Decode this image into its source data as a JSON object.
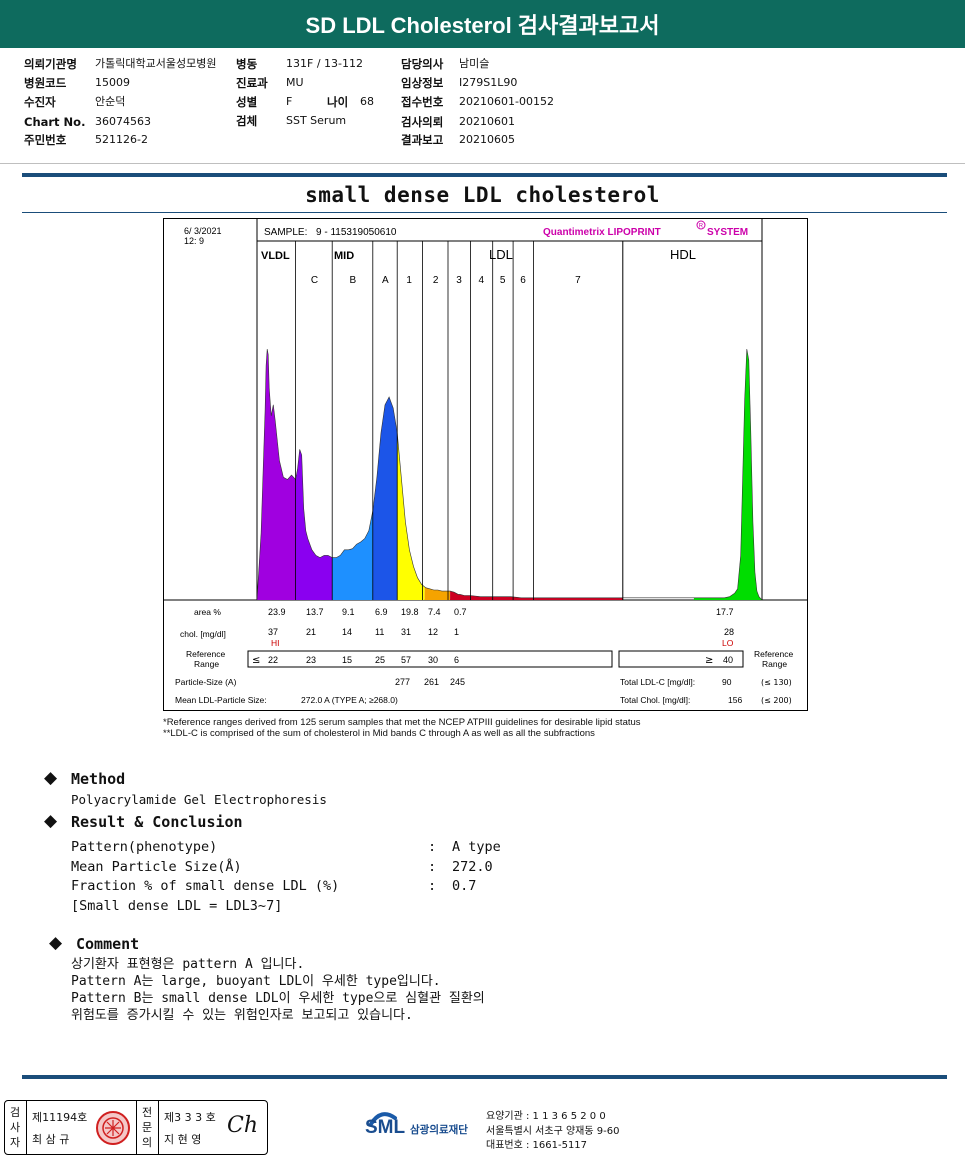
{
  "report_title": "SD LDL Cholesterol 검사결과보고서",
  "patient": {
    "col1": [
      {
        "label": "의뢰기관명",
        "value": "가톨릭대학교서울성모병원"
      },
      {
        "label": "병원코드",
        "value": "15009"
      },
      {
        "label": "수진자",
        "value": "안순덕"
      },
      {
        "label": "Chart No.",
        "value": "36074563"
      },
      {
        "label": "주민번호",
        "value": "521126-2"
      }
    ],
    "col2": [
      {
        "label": "병동",
        "value": "131F / 13-112"
      },
      {
        "label": "진료과",
        "value": "MU"
      },
      {
        "label": "성별",
        "value": "F"
      },
      {
        "label": "검체",
        "value": "SST Serum"
      }
    ],
    "age_label": "나이",
    "age_value": "68",
    "col3": [
      {
        "label": "담당의사",
        "value": "남미슬"
      },
      {
        "label": "임상정보",
        "value": "I279S1L90"
      },
      {
        "label": "접수번호",
        "value": "20210601-00152"
      },
      {
        "label": "검사의뢰",
        "value": "20210601"
      },
      {
        "label": "결과보고",
        "value": "20210605"
      }
    ]
  },
  "section_title": "small dense LDL cholesterol",
  "chart_data": {
    "type": "area",
    "date": "6/  3/2021",
    "time": "12:  9",
    "sample_label": "SAMPLE:",
    "sample_id": "9 - 115319050610",
    "brand": "Quantimetrix LIPOPRINT",
    "brand_mark": "R",
    "brand_suffix": "SYSTEM",
    "group_labels": [
      "VLDL",
      "MID",
      "LDL",
      "HDL"
    ],
    "bands": [
      "C",
      "B",
      "A",
      "1",
      "2",
      "3",
      "4",
      "5",
      "6",
      "7"
    ],
    "row_labels": {
      "area": "area %",
      "chol": "chol. [mg/dl]",
      "ref": "Reference Range",
      "ref_right": "Reference Range",
      "particle": "Particle-Size (A)",
      "mean": "Mean LDL-Particle Size:"
    },
    "area_pct": [
      "23.9",
      "13.7",
      "9.1",
      "6.9",
      "19.8",
      "7.4",
      "0.7"
    ],
    "hdl_area": "17.7",
    "chol_mgdl": [
      "37",
      "21",
      "14",
      "11",
      "31",
      "12",
      "1"
    ],
    "hdl_chol": "28",
    "hi_flag": "HI",
    "lo_flag": "LO",
    "ref_le": "≤",
    "ref_ranges": [
      "22",
      "23",
      "15",
      "25",
      "57",
      "30",
      "6"
    ],
    "hdl_ref_ge": "≥",
    "hdl_ref": "40",
    "particle_sizes": [
      "277",
      "261",
      "245"
    ],
    "mean_particle": "272.0 A   (TYPE A; ≥268.0)",
    "total_ldl_label": "Total LDL-C [mg/dl]:",
    "total_ldl": "90",
    "total_ldl_ref": "(≤ 130)",
    "total_chol_label": "Total Chol. [mg/dl]:",
    "total_chol": "156",
    "total_chol_ref": "(≤ 200)",
    "profile": {
      "x": [
        0,
        4,
        8,
        9,
        10,
        11,
        12,
        14,
        16,
        18,
        22,
        26,
        30,
        34,
        38,
        40,
        42,
        44,
        46,
        48,
        50,
        54,
        58,
        62,
        66,
        70,
        74,
        78,
        82,
        86,
        90,
        94,
        98,
        102,
        106,
        110,
        114,
        118,
        122,
        126,
        130,
        134,
        138,
        142,
        146,
        150,
        154,
        158,
        162,
        166,
        170,
        174,
        178,
        182,
        186,
        190,
        194,
        196,
        198,
        200,
        204,
        210,
        220,
        230,
        240,
        250,
        260,
        270,
        280,
        290,
        300,
        310,
        320,
        330,
        340,
        350,
        360,
        370,
        380,
        390,
        400,
        410,
        420,
        430,
        440,
        450,
        455,
        460,
        465,
        470,
        473,
        476,
        478,
        480,
        482,
        484,
        486,
        488,
        490,
        492,
        494,
        496,
        497
      ],
      "y": [
        0,
        60,
        170,
        210,
        225,
        220,
        190,
        165,
        175,
        160,
        125,
        110,
        108,
        112,
        108,
        118,
        135,
        130,
        82,
        62,
        55,
        45,
        40,
        38,
        40,
        40,
        38,
        38,
        40,
        45,
        45,
        46,
        50,
        52,
        55,
        62,
        80,
        110,
        150,
        175,
        182,
        172,
        150,
        110,
        70,
        45,
        30,
        20,
        14,
        11,
        10,
        9,
        9,
        8,
        8,
        8,
        7,
        6,
        5,
        5,
        4,
        4,
        3,
        3,
        3,
        3,
        2,
        2,
        2,
        2,
        2,
        2,
        2,
        2,
        2,
        2,
        2,
        2,
        2,
        2,
        2,
        2,
        2,
        2,
        2,
        2,
        2,
        2,
        3,
        6,
        10,
        40,
        110,
        180,
        225,
        215,
        150,
        70,
        25,
        8,
        3,
        1,
        0
      ]
    },
    "band_colors": [
      "#a000e0",
      "#8a00f0",
      "#1e90ff",
      "#1c55e8",
      "#ffff00",
      "#f5a300",
      "#cc0022",
      "#00dd00"
    ]
  },
  "footnotes": [
    "*Reference ranges derived from 125 serum samples that met the NCEP ATPIII guidelines for desirable lipid status",
    "**LDL-C is comprised of the sum of cholesterol in Mid bands C through A as well as all the subfractions"
  ],
  "method": {
    "heading": "Method",
    "text": "Polyacrylamide Gel Electrophoresis"
  },
  "result": {
    "heading": "Result & Conclusion",
    "rows": [
      {
        "label": "Pattern(phenotype)",
        "value": "A type"
      },
      {
        "label": "Mean Particle Size(Å)",
        "value": "272.0"
      },
      {
        "label": "Fraction % of small dense LDL (%)",
        "value": "0.7"
      }
    ],
    "note": "[Small dense LDL = LDL3~7]",
    "colon": ":"
  },
  "comment": {
    "heading": "Comment",
    "lines": [
      "상기환자 표현형은 pattern A 입니다.",
      "Pattern A는 large, buoyant LDL이 우세한 type입니다.",
      "Pattern B는 small dense LDL이 우세한 type으로 심혈관 질환의",
      "위험도를 증가시킬 수 있는 위험인자로 보고되고 있습니다."
    ]
  },
  "footer": {
    "sign_label_1": "검사자",
    "license_1": "제11194호",
    "name_1": "최 삼 규",
    "sign_label_2": "전문의",
    "license_2": "제3 3 3 호",
    "name_2": "지 현 영",
    "signature": "Ch",
    "logo_text": "SML",
    "foundation": "삼광의료재단",
    "address_lines": [
      "요양기관 : 1 1 3 6 5 2 0 0",
      "서울특별시 서초구 양재동 9-60",
      "대표번호 : 1661-5117"
    ]
  }
}
